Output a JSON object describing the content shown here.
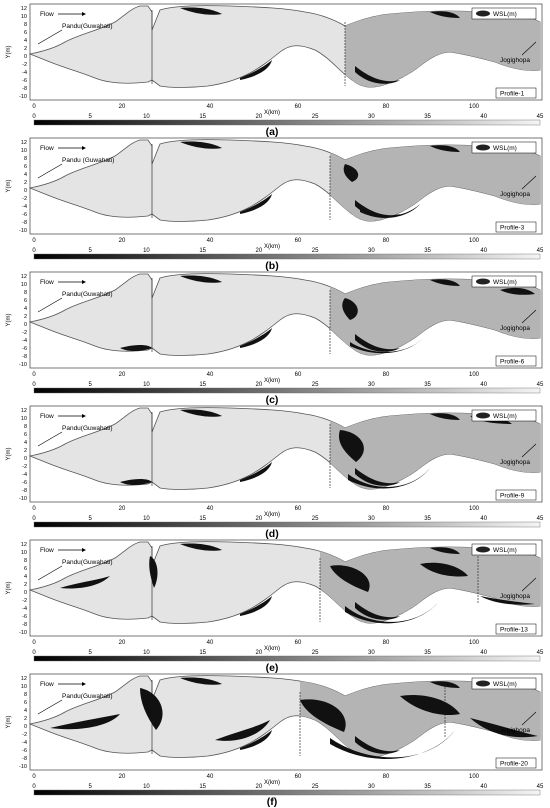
{
  "colorbar_ticks": [
    "0",
    "5",
    "10",
    "15",
    "20",
    "25",
    "30",
    "35",
    "40",
    "45"
  ],
  "legend_label": "WSL(m)",
  "flow_label": "Flow",
  "origin_label": "Pandu(Guwahati)",
  "dest_label": "Jogighopa",
  "x_axis_label": "X(km)",
  "y_axis_label": "Y(m)",
  "x_ticks": [
    "0",
    "20",
    "40",
    "60",
    "80",
    "100"
  ],
  "y_ticks": [
    "12",
    "10",
    "8",
    "6",
    "4",
    "2",
    "0",
    "-2",
    "-4",
    "-6",
    "-8",
    "-10"
  ],
  "panels": [
    {
      "caption": "(a)",
      "profile": "Profile-1",
      "origin_label": "Pandu(Guwahati)"
    },
    {
      "caption": "(b)",
      "profile": "Profile-3",
      "origin_label": "Pandu (Guwahati)"
    },
    {
      "caption": "(c)",
      "profile": "Profile-6",
      "origin_label": "Pandu(Guwahati)"
    },
    {
      "caption": "(d)",
      "profile": "Profile-9",
      "origin_label": "Pandu(Guwahati)"
    },
    {
      "caption": "(e)",
      "profile": "Profile-13",
      "origin_label": "Pandu(Guwahati)"
    },
    {
      "caption": "(f)",
      "profile": "Profile-20",
      "origin_label": "Pandu(Guwahati)"
    }
  ],
  "colors": {
    "light_fill": "#e4e4e4",
    "mid_fill": "#b4b4b4",
    "dark": "#111111",
    "outline": "#555555"
  }
}
